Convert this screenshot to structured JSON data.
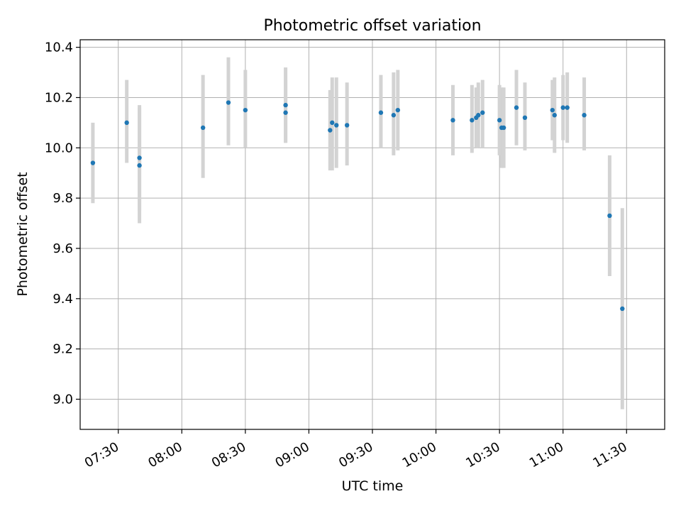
{
  "chart_data": {
    "type": "scatter",
    "title": "Photometric offset variation",
    "xlabel": "UTC time",
    "ylabel": "Photometric offset",
    "x_axis_type": "time",
    "xlim": [
      "07:12",
      "11:48"
    ],
    "ylim": [
      8.88,
      10.43
    ],
    "xticks": [
      "07:30",
      "08:00",
      "08:30",
      "09:00",
      "09:30",
      "10:00",
      "10:30",
      "11:00",
      "11:30"
    ],
    "yticks": [
      "9.0",
      "9.2",
      "9.4",
      "9.6",
      "9.8",
      "10.0",
      "10.2",
      "10.4"
    ],
    "grid": true,
    "point_color": "#1f77b4",
    "errorbar_color": "#d3d3d3",
    "series": [
      {
        "points": [
          {
            "x": "07:18",
            "y": 9.94,
            "ylow": 9.78,
            "yhigh": 10.1
          },
          {
            "x": "07:34",
            "y": 10.1,
            "ylow": 9.94,
            "yhigh": 10.27
          },
          {
            "x": "07:40",
            "y": 9.96,
            "ylow": 9.75,
            "yhigh": 10.17
          },
          {
            "x": "07:40",
            "y": 9.93,
            "ylow": 9.7,
            "yhigh": 10.16
          },
          {
            "x": "08:10",
            "y": 10.08,
            "ylow": 9.88,
            "yhigh": 10.29
          },
          {
            "x": "08:22",
            "y": 10.18,
            "ylow": 10.01,
            "yhigh": 10.36
          },
          {
            "x": "08:30",
            "y": 10.15,
            "ylow": 10.0,
            "yhigh": 10.31
          },
          {
            "x": "08:49",
            "y": 10.17,
            "ylow": 10.02,
            "yhigh": 10.32
          },
          {
            "x": "08:49",
            "y": 10.14,
            "ylow": 10.02,
            "yhigh": 10.27
          },
          {
            "x": "09:10",
            "y": 10.07,
            "ylow": 9.91,
            "yhigh": 10.23
          },
          {
            "x": "09:11",
            "y": 10.1,
            "ylow": 9.91,
            "yhigh": 10.28
          },
          {
            "x": "09:13",
            "y": 10.09,
            "ylow": 9.92,
            "yhigh": 10.28
          },
          {
            "x": "09:18",
            "y": 10.09,
            "ylow": 9.93,
            "yhigh": 10.26
          },
          {
            "x": "09:34",
            "y": 10.14,
            "ylow": 10.0,
            "yhigh": 10.29
          },
          {
            "x": "09:40",
            "y": 10.13,
            "ylow": 9.97,
            "yhigh": 10.3
          },
          {
            "x": "09:42",
            "y": 10.15,
            "ylow": 9.99,
            "yhigh": 10.31
          },
          {
            "x": "10:08",
            "y": 10.11,
            "ylow": 9.97,
            "yhigh": 10.25
          },
          {
            "x": "10:17",
            "y": 10.11,
            "ylow": 9.98,
            "yhigh": 10.25
          },
          {
            "x": "10:19",
            "y": 10.12,
            "ylow": 10.0,
            "yhigh": 10.24
          },
          {
            "x": "10:20",
            "y": 10.13,
            "ylow": 10.0,
            "yhigh": 10.26
          },
          {
            "x": "10:22",
            "y": 10.14,
            "ylow": 10.0,
            "yhigh": 10.27
          },
          {
            "x": "10:30",
            "y": 10.11,
            "ylow": 9.97,
            "yhigh": 10.25
          },
          {
            "x": "10:31",
            "y": 10.08,
            "ylow": 9.92,
            "yhigh": 10.24
          },
          {
            "x": "10:32",
            "y": 10.08,
            "ylow": 9.92,
            "yhigh": 10.24
          },
          {
            "x": "10:38",
            "y": 10.16,
            "ylow": 10.01,
            "yhigh": 10.31
          },
          {
            "x": "10:42",
            "y": 10.12,
            "ylow": 9.99,
            "yhigh": 10.26
          },
          {
            "x": "10:55",
            "y": 10.15,
            "ylow": 10.03,
            "yhigh": 10.27
          },
          {
            "x": "10:56",
            "y": 10.13,
            "ylow": 9.98,
            "yhigh": 10.28
          },
          {
            "x": "11:00",
            "y": 10.16,
            "ylow": 10.03,
            "yhigh": 10.29
          },
          {
            "x": "11:02",
            "y": 10.16,
            "ylow": 10.02,
            "yhigh": 10.3
          },
          {
            "x": "11:10",
            "y": 10.13,
            "ylow": 9.99,
            "yhigh": 10.28
          },
          {
            "x": "11:22",
            "y": 9.73,
            "ylow": 9.49,
            "yhigh": 9.97
          },
          {
            "x": "11:28",
            "y": 9.36,
            "ylow": 8.96,
            "yhigh": 9.76
          }
        ]
      }
    ]
  }
}
